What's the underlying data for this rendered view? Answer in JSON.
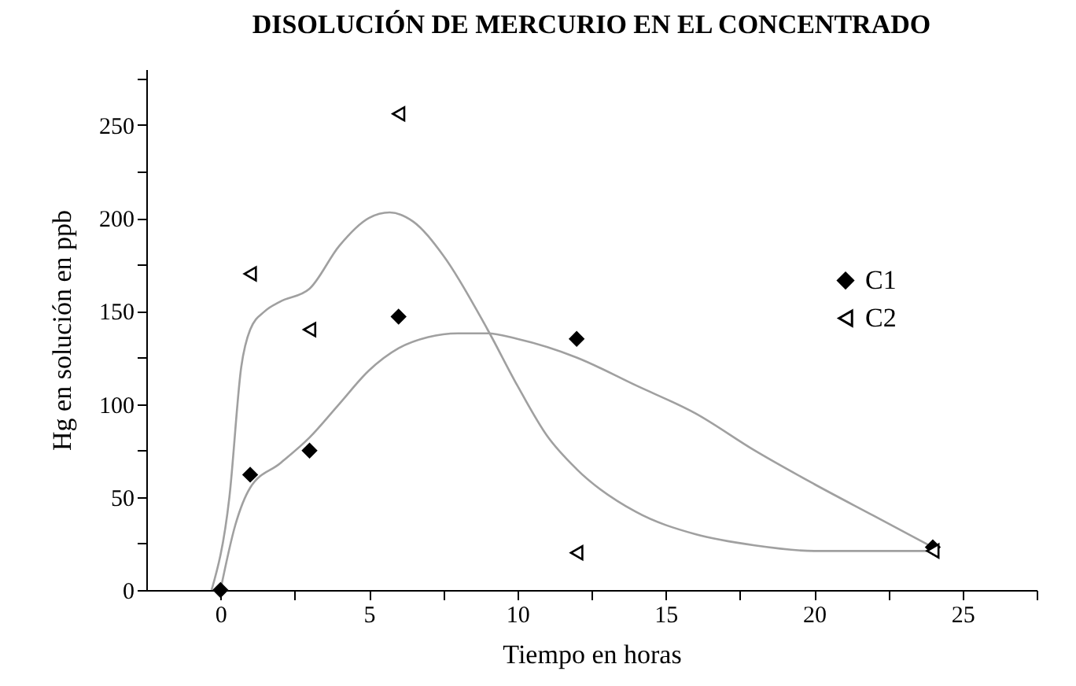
{
  "chart_data": {
    "type": "scatter",
    "title": "DISOLUCIÓN DE MERCURIO EN EL CONCENTRADO",
    "xlabel": "Tiempo en horas",
    "ylabel": "Hg en solución en ppb",
    "xlim": [
      -2.5,
      27.5
    ],
    "xticks": [
      0,
      {
        "value": 2.5,
        "label": null
      },
      5,
      {
        "value": 7.5,
        "label": null
      },
      10,
      {
        "value": 12.5,
        "label": null
      },
      15,
      {
        "value": 17.5,
        "label": null
      },
      20,
      {
        "value": 22.5,
        "label": null
      },
      25,
      {
        "value": 27.5,
        "label": null
      }
    ],
    "ylim": [
      0,
      280
    ],
    "yticks": [
      0,
      {
        "value": 25,
        "label": null
      },
      50,
      {
        "value": 75,
        "label": null
      },
      100,
      {
        "value": 125,
        "label": null
      },
      150,
      {
        "value": 175,
        "label": null
      },
      200,
      {
        "value": 225,
        "label": null
      },
      250,
      {
        "value": 275,
        "label": null
      }
    ],
    "grid": false,
    "legend": "right",
    "series": [
      {
        "name": "C1",
        "marker": "diamond",
        "color": "#000000",
        "x": [
          0,
          1,
          3,
          6,
          12,
          24
        ],
        "values": [
          0,
          62,
          75,
          147,
          135,
          23
        ]
      },
      {
        "name": "C2",
        "marker": "triangle",
        "color": "#000000",
        "x": [
          1,
          3,
          6,
          12,
          24
        ],
        "values": [
          170,
          140,
          256,
          20,
          21
        ]
      },
      {
        "type": "line",
        "color": "#a0a0a0",
        "x": [
          0,
          0.5,
          1,
          2,
          3,
          4,
          5,
          6,
          7,
          8,
          9,
          10,
          12,
          14,
          16,
          18,
          20,
          22,
          24
        ],
        "values": [
          0,
          35,
          55,
          68,
          82,
          100,
          118,
          130,
          136,
          138,
          138,
          135,
          125,
          110,
          95,
          75,
          57,
          40,
          23
        ]
      },
      {
        "type": "line",
        "color": "#a0a0a0",
        "x": [
          -0.3,
          0.3,
          0.7,
          1,
          1.5,
          2,
          3,
          4,
          5,
          5.7,
          6.5,
          7.5,
          9,
          10,
          11,
          12,
          14,
          16,
          18,
          20,
          24
        ],
        "values": [
          0,
          50,
          120,
          140,
          150,
          155,
          162,
          185,
          200,
          203,
          198,
          180,
          140,
          110,
          83,
          65,
          42,
          30,
          24,
          21,
          21
        ]
      }
    ]
  }
}
